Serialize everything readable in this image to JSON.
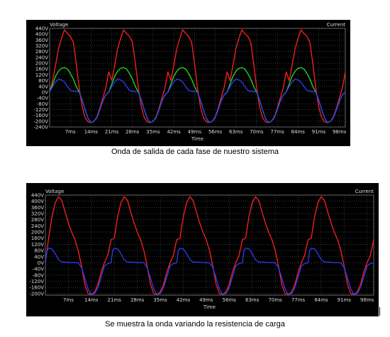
{
  "colors": {
    "background": "#000000",
    "grid": "#555555",
    "text": "#dcdcdc",
    "red": "#ff2020",
    "green": "#22e022",
    "blue": "#2f3cff"
  },
  "chart_data": [
    {
      "type": "line",
      "left_label": "Voltage",
      "right_label": "Current",
      "xlabel": "Time",
      "x_unit": "ms",
      "xlim": [
        0,
        100
      ],
      "ylim": [
        -240,
        440
      ],
      "y_ticks": [
        "440V",
        "400V",
        "360V",
        "320V",
        "280V",
        "240V",
        "200V",
        "160V",
        "120V",
        "80V",
        "40V",
        "0V",
        "-40V",
        "-80V",
        "-120V",
        "-160V",
        "-200V",
        "-240V"
      ],
      "x_ticks": [
        "7ms",
        "14ms",
        "21ms",
        "28ms",
        "35ms",
        "42ms",
        "49ms",
        "56ms",
        "63ms",
        "70ms",
        "77ms",
        "84ms",
        "91ms",
        "98ms"
      ],
      "grid": true,
      "period_ms": 20,
      "series": [
        {
          "color": "red",
          "points": [
            [
              0,
              0
            ],
            [
              1,
              80
            ],
            [
              2,
              185
            ],
            [
              3,
              300
            ],
            [
              4,
              370
            ],
            [
              5,
              430
            ],
            [
              6,
              405
            ],
            [
              7,
              385
            ],
            [
              8,
              345
            ],
            [
              9,
              200
            ],
            [
              10,
              30
            ],
            [
              11,
              -100
            ],
            [
              12,
              -175
            ],
            [
              13,
              -205
            ],
            [
              14,
              -210
            ],
            [
              15,
              -200
            ],
            [
              16,
              -170
            ],
            [
              17,
              -110
            ],
            [
              18,
              -40
            ],
            [
              19,
              30
            ],
            [
              20,
              140
            ]
          ]
        },
        {
          "color": "green",
          "points": [
            [
              0,
              0
            ],
            [
              1,
              55
            ],
            [
              2,
              110
            ],
            [
              3,
              145
            ],
            [
              4,
              165
            ],
            [
              5,
              170
            ],
            [
              6,
              160
            ],
            [
              7,
              130
            ],
            [
              8,
              90
            ],
            [
              9,
              40
            ],
            [
              10,
              0
            ],
            [
              11,
              -55
            ],
            [
              12,
              -120
            ],
            [
              13,
              -180
            ],
            [
              14,
              -210
            ],
            [
              15,
              -200
            ],
            [
              16,
              -175
            ],
            [
              17,
              -120
            ],
            [
              18,
              -60
            ],
            [
              19,
              -20
            ],
            [
              20,
              0
            ]
          ]
        },
        {
          "color": "blue",
          "points": [
            [
              0,
              0
            ],
            [
              1,
              40
            ],
            [
              2,
              70
            ],
            [
              3,
              90
            ],
            [
              4,
              85
            ],
            [
              5,
              70
            ],
            [
              6,
              40
            ],
            [
              7,
              12
            ],
            [
              8,
              8
            ],
            [
              9,
              5
            ],
            [
              10,
              2
            ],
            [
              11,
              -55
            ],
            [
              12,
              -120
            ],
            [
              13,
              -180
            ],
            [
              14,
              -210
            ],
            [
              15,
              -200
            ],
            [
              16,
              -175
            ],
            [
              17,
              -120
            ],
            [
              18,
              -60
            ],
            [
              19,
              -20
            ],
            [
              20,
              0
            ]
          ]
        }
      ]
    },
    {
      "type": "line",
      "left_label": "Voltage",
      "right_label": "Current",
      "xlabel": "Time",
      "x_unit": "ms",
      "xlim": [
        0,
        100
      ],
      "ylim": [
        -210,
        440
      ],
      "y_ticks": [
        "440V",
        "400V",
        "360V",
        "320V",
        "280V",
        "240V",
        "200V",
        "160V",
        "120V",
        "80V",
        "40V",
        "0V",
        "-40V",
        "-80V",
        "-120V",
        "-160V",
        "-200V"
      ],
      "x_ticks": [
        "7ms",
        "14ms",
        "21ms",
        "28ms",
        "35ms",
        "42ms",
        "49ms",
        "56ms",
        "63ms",
        "70ms",
        "77ms",
        "84ms",
        "91ms",
        "98ms"
      ],
      "grid": true,
      "period_ms": 20,
      "series": [
        {
          "color": "red",
          "points": [
            [
              0,
              0
            ],
            [
              1,
              160
            ],
            [
              2,
              300
            ],
            [
              3,
              390
            ],
            [
              4,
              430
            ],
            [
              5,
              405
            ],
            [
              6,
              330
            ],
            [
              7,
              260
            ],
            [
              8,
              200
            ],
            [
              9,
              150
            ],
            [
              10,
              80
            ],
            [
              11,
              -20
            ],
            [
              12,
              -140
            ],
            [
              13,
              -200
            ],
            [
              14,
              -205
            ],
            [
              15,
              -190
            ],
            [
              16,
              -140
            ],
            [
              17,
              -60
            ],
            [
              18,
              0
            ],
            [
              19,
              50
            ],
            [
              20,
              150
            ]
          ]
        },
        {
          "color": "blue",
          "points": [
            [
              0,
              0
            ],
            [
              0.5,
              80
            ],
            [
              1,
              95
            ],
            [
              2,
              90
            ],
            [
              3,
              60
            ],
            [
              4,
              20
            ],
            [
              5,
              5
            ],
            [
              6,
              5
            ],
            [
              7,
              3
            ],
            [
              8,
              2
            ],
            [
              9,
              1
            ],
            [
              10,
              0
            ],
            [
              11,
              -30
            ],
            [
              12,
              -100
            ],
            [
              13,
              -170
            ],
            [
              14,
              -205
            ],
            [
              15,
              -200
            ],
            [
              16,
              -160
            ],
            [
              17,
              -90
            ],
            [
              18,
              -20
            ],
            [
              19,
              -5
            ],
            [
              20,
              0
            ]
          ]
        }
      ]
    }
  ],
  "captions": {
    "chart1": "Onda de salida de cada fase de nuestro sistema",
    "chart2": "Se muestra la onda variando la resistencia de carga"
  }
}
